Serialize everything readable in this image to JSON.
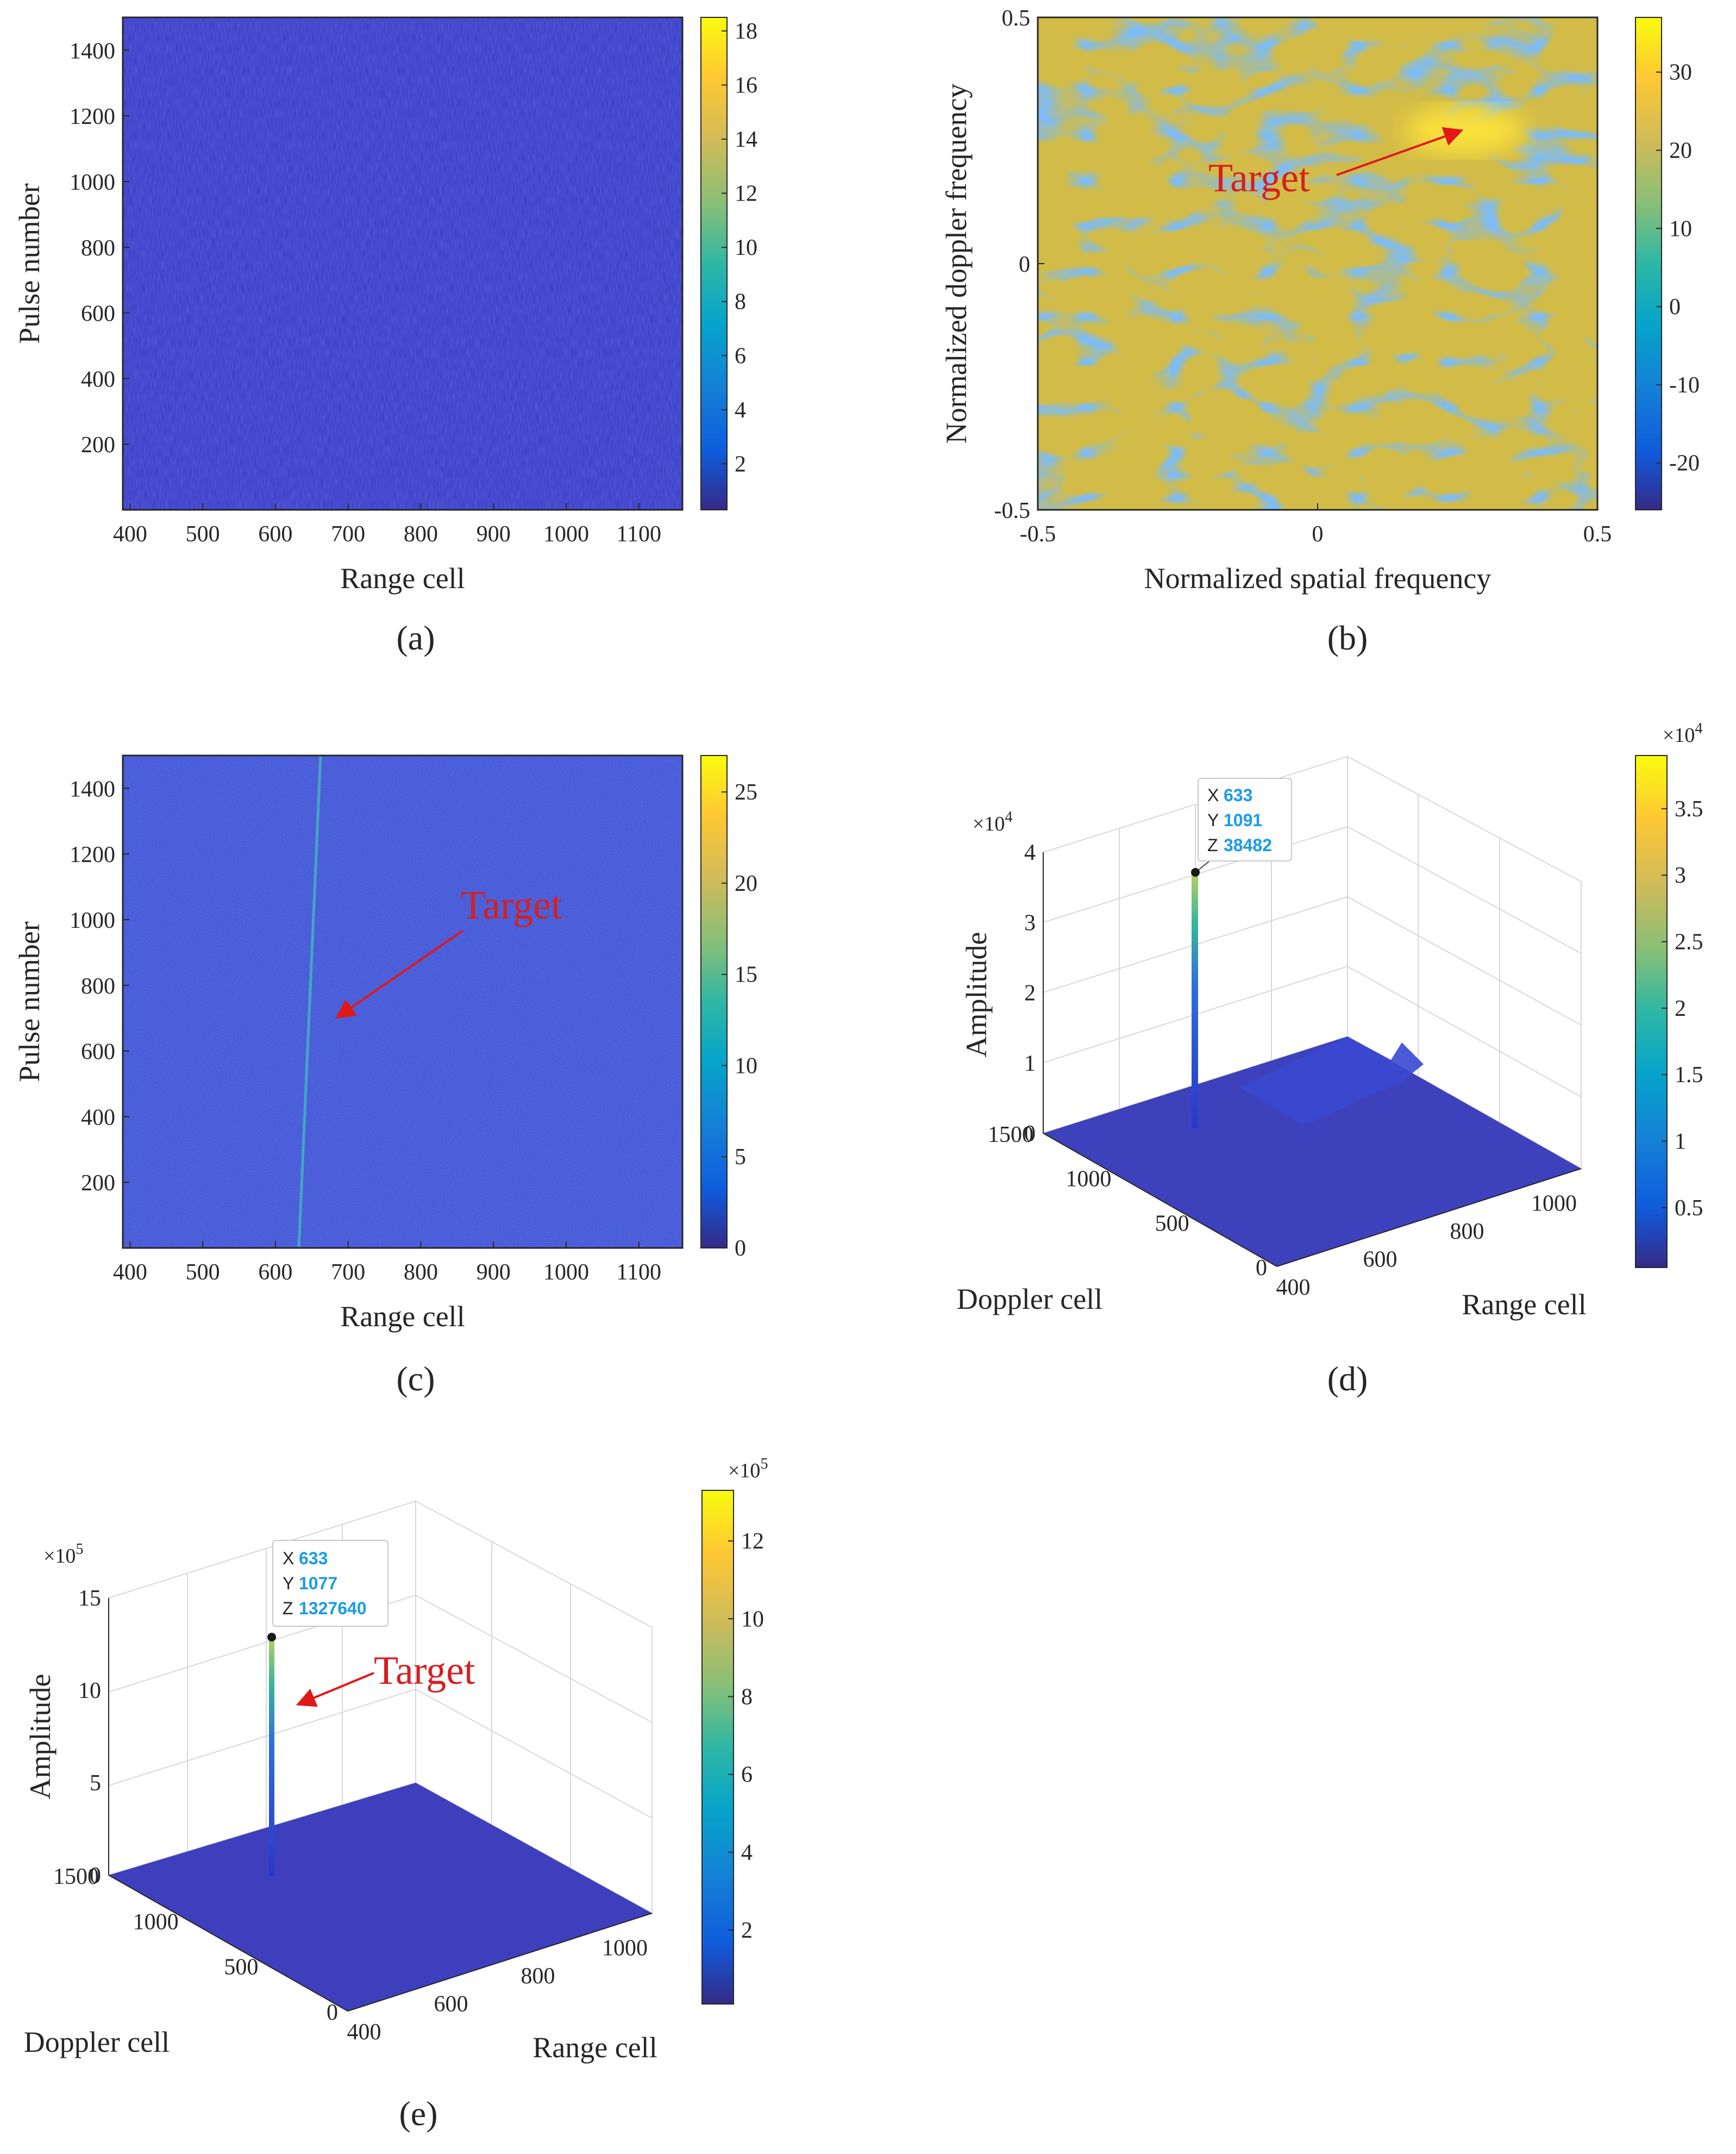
{
  "colors": {
    "parula": [
      "#352a87",
      "#0f5cdd",
      "#1481d6",
      "#06a4ca",
      "#2eb7a4",
      "#87bf77",
      "#d1bb59",
      "#fec832",
      "#f9fb0e"
    ],
    "noise_bg": "#3a3dc8",
    "noise_dark": "#2f2f9e",
    "target_text": "#d42020",
    "datatip_value": "#1a9be8"
  },
  "chart_data": [
    {
      "id": "a",
      "type": "heatmap",
      "caption": "(a)",
      "xlabel": "Range cell",
      "ylabel": "Pulse number",
      "xlim": [
        390,
        1160
      ],
      "ylim": [
        0,
        1500
      ],
      "xticks": [
        "400",
        "500",
        "600",
        "700",
        "800",
        "900",
        "1000",
        "1100"
      ],
      "yticks": [
        "200",
        "400",
        "600",
        "800",
        "1000",
        "1200",
        "1400"
      ],
      "colorbar": {
        "lim": [
          0.3,
          18.5
        ],
        "ticks": [
          "2",
          "4",
          "6",
          "8",
          "10",
          "12",
          "14",
          "16",
          "18"
        ]
      }
    },
    {
      "id": "b",
      "type": "heatmap",
      "caption": "(b)",
      "xlabel": "Normalized spatial frequency",
      "ylabel": "Normalized doppler frequency",
      "xlim": [
        -0.5,
        0.5
      ],
      "ylim": [
        -0.5,
        0.5
      ],
      "xticks": [
        "-0.5",
        "0",
        "0.5"
      ],
      "yticks": [
        "-0.5",
        "0",
        "0.5"
      ],
      "annotation": {
        "text": "Target",
        "point": [
          0.26,
          0.27
        ]
      },
      "colorbar": {
        "lim": [
          -26,
          37
        ],
        "ticks": [
          "-20",
          "-10",
          "0",
          "10",
          "20",
          "30"
        ]
      }
    },
    {
      "id": "c",
      "type": "heatmap",
      "caption": "(c)",
      "xlabel": "Range cell",
      "ylabel": "Pulse number",
      "xlim": [
        390,
        1160
      ],
      "ylim": [
        0,
        1500
      ],
      "xticks": [
        "400",
        "500",
        "600",
        "700",
        "800",
        "900",
        "1000",
        "1100"
      ],
      "yticks": [
        "200",
        "400",
        "600",
        "800",
        "1000",
        "1200",
        "1400"
      ],
      "annotation": {
        "text": "Target",
        "point": [
          680,
          700
        ]
      },
      "colorbar": {
        "lim": [
          0,
          27
        ],
        "ticks": [
          "0",
          "5",
          "10",
          "15",
          "20",
          "25"
        ]
      }
    },
    {
      "id": "d",
      "type": "surface",
      "caption": "(d)",
      "xlabel": "Range cell",
      "ylabel": "Doppler cell",
      "zlabel": "Amplitude",
      "xticks": [
        "400",
        "600",
        "800",
        "1000"
      ],
      "yticks": [
        "0",
        "500",
        "1000",
        "1500"
      ],
      "zticks": [
        "0",
        "1",
        "2",
        "3",
        "4"
      ],
      "zexp": "×10",
      "zexp_power": "4",
      "datatip": {
        "x_label": "X",
        "x": "633",
        "y_label": "Y",
        "y": "1091",
        "z_label": "Z",
        "z": "38482"
      },
      "colorbar": {
        "exp": "×10",
        "exp_power": "4",
        "ticks": [
          "0.5",
          "1",
          "1.5",
          "2",
          "2.5",
          "3",
          "3.5"
        ]
      }
    },
    {
      "id": "e",
      "type": "surface",
      "caption": "(e)",
      "xlabel": "Range cell",
      "ylabel": "Doppler cell",
      "zlabel": "Amplitude",
      "xticks": [
        "400",
        "600",
        "800",
        "1000"
      ],
      "yticks": [
        "0",
        "500",
        "1000",
        "1500"
      ],
      "zticks": [
        "0",
        "5",
        "10",
        "15"
      ],
      "zexp": "×10",
      "zexp_power": "5",
      "annotation": {
        "text": "Target"
      },
      "datatip": {
        "x_label": "X",
        "x": "633",
        "y_label": "Y",
        "y": "1077",
        "z_label": "Z",
        "z": "1327640"
      },
      "colorbar": {
        "exp": "×10",
        "exp_power": "5",
        "ticks": [
          "2",
          "4",
          "6",
          "8",
          "10",
          "12"
        ]
      }
    }
  ]
}
